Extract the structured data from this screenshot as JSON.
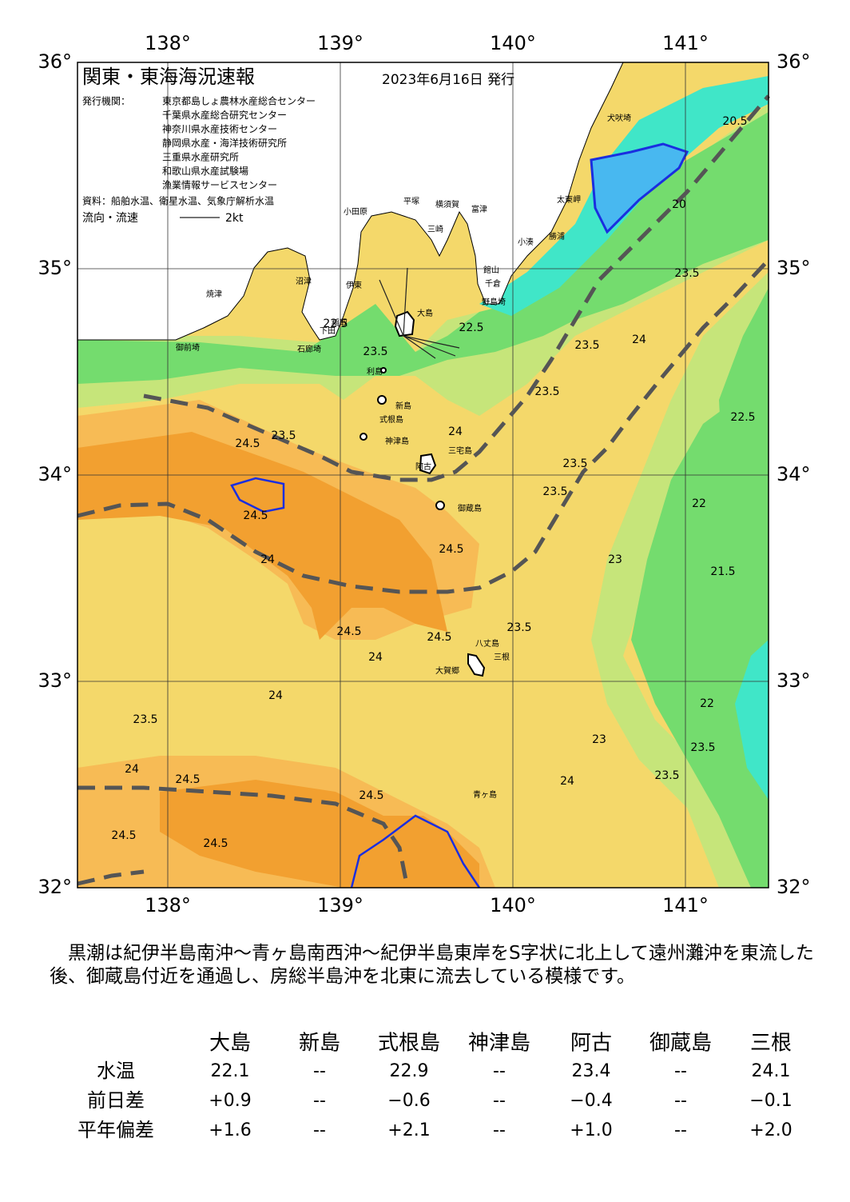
{
  "header": {
    "title": "関東・東海海況速報",
    "date": "2023年6月16日 発行",
    "issuer_label": "発行機関：",
    "issuers": [
      "東京都島しょ農林水産総合センター",
      "千葉県水産総合研究センター",
      "神奈川県水産技術センター",
      "静岡県水産・海洋技術研究所",
      "三重県水産研究所",
      "和歌山県水産試験場",
      "漁業情報サービスセンター"
    ],
    "source": "資料：船舶水温、衛星水温、気象庁解析水温",
    "legend_label": "流向・流速",
    "legend_scale": "2kt"
  },
  "map": {
    "lon_ticks": [
      {
        "value": 138,
        "label": "138°"
      },
      {
        "value": 139,
        "label": "139°"
      },
      {
        "value": 140,
        "label": "140°"
      },
      {
        "value": 141,
        "label": "141°"
      }
    ],
    "lat_ticks": [
      {
        "value": 36,
        "label": "36°"
      },
      {
        "value": 35,
        "label": "35°"
      },
      {
        "value": 34,
        "label": "34°"
      },
      {
        "value": 33,
        "label": "33°"
      },
      {
        "value": 32,
        "label": "32°"
      }
    ],
    "places": [
      "犬吠埼",
      "太東岬",
      "勝浦",
      "小湊",
      "館山",
      "千倉",
      "野島埼",
      "富津",
      "横須賀",
      "三崎",
      "平塚",
      "小田原",
      "伊東",
      "稲取",
      "下田",
      "石廊埼",
      "沼津",
      "焼津",
      "御前埼",
      "大島",
      "利島",
      "新島",
      "式根島",
      "神津島",
      "三宅島",
      "阿古",
      "御蔵島",
      "八丈島",
      "三根",
      "大賀郷",
      "青ヶ島"
    ],
    "contour_labels": [
      20.5,
      20,
      23.5,
      23.5,
      24,
      23.5,
      22.5,
      22,
      21.5,
      23.5,
      23,
      24.5,
      24,
      24.5,
      23.5,
      24,
      24,
      23.5,
      24,
      24.5,
      24.5,
      24.5,
      24.5,
      24.5,
      24.5,
      24.5,
      23.5,
      24,
      23.5,
      22,
      23,
      22.5,
      22.5,
      23.5,
      23.5,
      24,
      23.5
    ]
  },
  "text": "　黒潮は紀伊半島南沖～青ヶ島南西沖～紀伊半島東岸をS字状に北上して遠州灘沖を東流した後、御蔵島付近を通過し、房総半島沖を北東に流去している模様です。",
  "table": {
    "columns": [
      "大島",
      "新島",
      "式根島",
      "神津島",
      "阿古",
      "御蔵島",
      "三根"
    ],
    "rows": [
      {
        "label": "水温",
        "values": [
          "22.1",
          "--",
          "22.9",
          "--",
          "23.4",
          "--",
          "24.1"
        ]
      },
      {
        "label": "前日差",
        "values": [
          "+0.9",
          "--",
          "−0.6",
          "--",
          "−0.4",
          "--",
          "−0.1"
        ]
      },
      {
        "label": "平年偏差",
        "values": [
          "+1.6",
          "--",
          "+2.1",
          "--",
          "+1.0",
          "--",
          "+2.0"
        ]
      }
    ]
  }
}
